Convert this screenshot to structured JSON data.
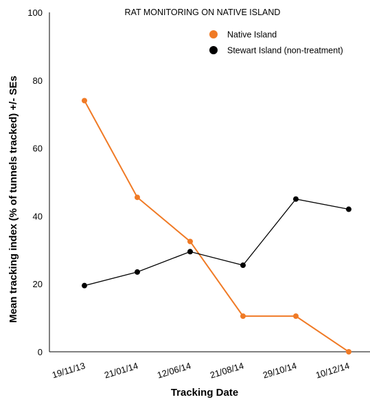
{
  "chart_data": {
    "type": "line",
    "title": "RAT MONITORING ON NATIVE ISLAND",
    "xlabel": "Tracking Date",
    "ylabel": "Mean tracking index (% of tunnels tracked) +/- SEs",
    "categories": [
      "19/11/13",
      "21/01/14",
      "12/06/14",
      "21/08/14",
      "29/10/14",
      "10/12/14"
    ],
    "ylim": [
      0,
      100
    ],
    "yticks": [
      0,
      20,
      40,
      60,
      80,
      100
    ],
    "grid": false,
    "legend_position": "top-right",
    "series": [
      {
        "name": "Native Island",
        "color": "#f07a25",
        "values": [
          74,
          45.5,
          32.5,
          10.5,
          10.5,
          0
        ]
      },
      {
        "name": "Stewart Island (non-treatment)",
        "color": "#000000",
        "values": [
          19.5,
          23.5,
          29.5,
          25.5,
          45,
          42
        ]
      }
    ]
  }
}
